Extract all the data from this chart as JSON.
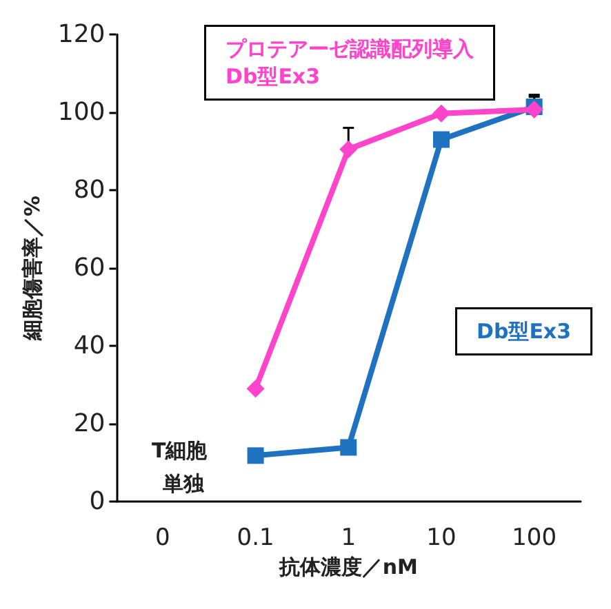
{
  "chart_data": {
    "type": "line",
    "xlabel": "抗体濃度／nM",
    "ylabel": "細胞傷害率／%",
    "categories": [
      "0",
      "0.1",
      "1",
      "10",
      "100"
    ],
    "series": [
      {
        "name": "プロテアーゼ認識配列導入\nDb型Ex3",
        "color": "#ff44cc",
        "marker": "diamond",
        "values": [
          null,
          29,
          90.5,
          99.7,
          100.7
        ],
        "errors": [
          null,
          null,
          [
            90.5,
            96
          ],
          null,
          [
            100.7,
            104.5
          ]
        ]
      },
      {
        "name": "Db型Ex3",
        "color": "#1f72c0",
        "marker": "square",
        "values": [
          null,
          11.8,
          13.9,
          93,
          101.4
        ],
        "errors": [
          null,
          null,
          null,
          null,
          [
            101.4,
            104
          ]
        ]
      }
    ],
    "ylim": [
      0,
      120
    ],
    "yticks": [
      0,
      20,
      40,
      60,
      80,
      100,
      120
    ],
    "grid": false,
    "legend": false,
    "annotations": [
      "T細胞",
      "単独"
    ]
  }
}
